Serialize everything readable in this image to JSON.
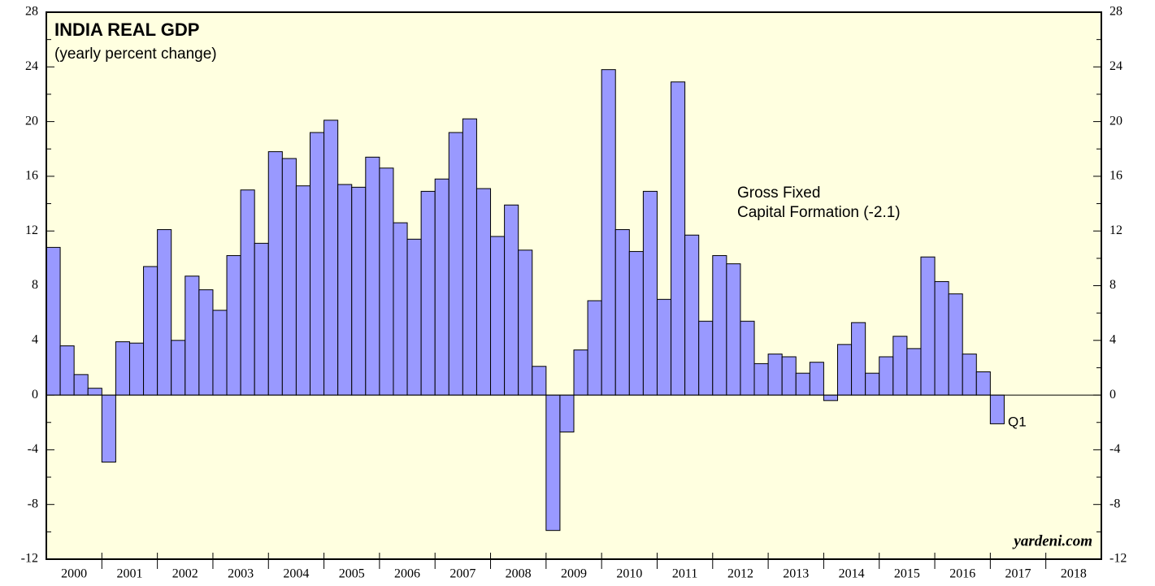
{
  "chart_data": {
    "type": "bar",
    "title": "INDIA REAL GDP",
    "subtitle": "(yearly percent change)",
    "annotations": [
      "Gross Fixed",
      "Capital Formation (-2.1)",
      "Q1"
    ],
    "source": "yardeni.com",
    "color": "#9999ff",
    "background": "#ffffe0",
    "x": [
      "2000",
      "2000",
      "2000",
      "2000",
      "2001",
      "2001",
      "2001",
      "2001",
      "2002",
      "2002",
      "2002",
      "2002",
      "2003",
      "2003",
      "2003",
      "2003",
      "2004",
      "2004",
      "2004",
      "2004",
      "2005",
      "2005",
      "2005",
      "2005",
      "2006",
      "2006",
      "2006",
      "2006",
      "2007",
      "2007",
      "2007",
      "2007",
      "2008",
      "2008",
      "2008",
      "2008",
      "2009",
      "2009",
      "2009",
      "2009",
      "2010",
      "2010",
      "2010",
      "2010",
      "2011",
      "2011",
      "2011",
      "2011",
      "2012",
      "2012",
      "2012",
      "2012",
      "2013",
      "2013",
      "2013",
      "2013",
      "2014",
      "2014",
      "2014",
      "2014",
      "2015",
      "2015",
      "2015",
      "2015",
      "2016",
      "2016",
      "2016",
      "2016",
      "2017"
    ],
    "values": [
      10.8,
      3.6,
      1.5,
      0.5,
      -4.9,
      3.9,
      3.8,
      9.4,
      12.1,
      4.0,
      8.7,
      7.7,
      6.2,
      10.2,
      15.0,
      11.1,
      17.8,
      17.3,
      15.3,
      19.2,
      20.1,
      15.4,
      15.2,
      17.4,
      16.6,
      12.6,
      11.4,
      14.9,
      15.8,
      19.2,
      20.2,
      15.1,
      11.6,
      13.9,
      10.6,
      2.1,
      -9.9,
      -2.7,
      3.3,
      6.9,
      23.8,
      12.1,
      10.5,
      14.9,
      7.0,
      22.9,
      11.7,
      5.4,
      10.2,
      9.6,
      5.4,
      2.3,
      3.0,
      2.8,
      1.6,
      2.4,
      -0.4,
      3.7,
      5.3,
      1.6,
      2.8,
      4.3,
      3.4,
      10.1,
      8.3,
      7.4,
      3.0,
      1.7,
      -2.1
    ],
    "xticks": [
      "2000",
      "2001",
      "2002",
      "2003",
      "2004",
      "2005",
      "2006",
      "2007",
      "2008",
      "2009",
      "2010",
      "2011",
      "2012",
      "2013",
      "2014",
      "2015",
      "2016",
      "2017",
      "2018"
    ],
    "ylim": [
      -12,
      28
    ],
    "yticks": [
      -12,
      -8,
      -4,
      0,
      4,
      8,
      12,
      16,
      20,
      24,
      28
    ]
  }
}
